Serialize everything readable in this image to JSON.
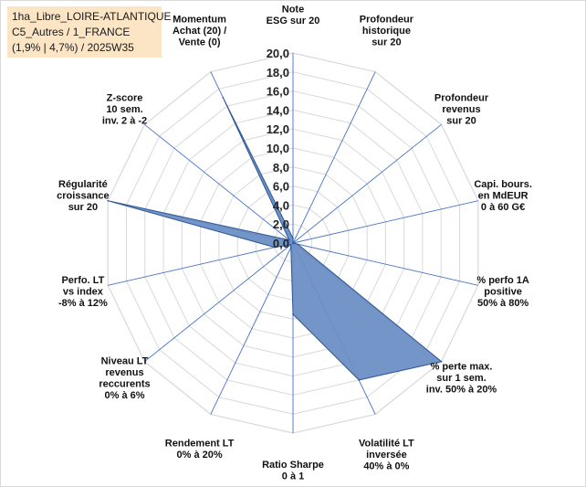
{
  "info": {
    "lines": [
      "1ha_Libre_LOIRE-ATLANTIQUE",
      "C5_Autres / 1_FRANCE",
      "(1,9% | 4,7%) / 2025W35"
    ]
  },
  "chart_data": {
    "type": "radar",
    "title": "",
    "rmax": 20,
    "ticks": [
      "0,0",
      "2,0",
      "4,0",
      "6,0",
      "8,0",
      "10,0",
      "12,0",
      "14,0",
      "16,0",
      "18,0",
      "20,0"
    ],
    "axes": [
      [
        "Note",
        "ESG sur 20"
      ],
      [
        "Profondeur",
        "historique",
        "sur 20"
      ],
      [
        "Profondeur",
        "revenus",
        "sur 20"
      ],
      [
        "Capi. bours.",
        "en MdEUR",
        "0 à 60 G€"
      ],
      [
        "% perfo 1A",
        "positive",
        "50% à 80%"
      ],
      [
        "% perte max.",
        "sur 1 sem.",
        "inv. 50% à 20%"
      ],
      [
        "Volatilité LT",
        "inversée",
        "40% à 0%"
      ],
      [
        "Ratio Sharpe",
        "0 à 1"
      ],
      [
        "Rendement LT",
        "0% à 20%"
      ],
      [
        "Niveau LT",
        "revenus",
        "reccurents",
        "0% à 6%"
      ],
      [
        "Perfo. LT",
        "vs index",
        "-8% à 12%"
      ],
      [
        "Régularité",
        "croissance",
        "sur 20"
      ],
      [
        "Z-score",
        "10 sem.",
        "inv. 2 à -2"
      ],
      [
        "Momentum",
        "Achat (20) /",
        "Vente (0)"
      ]
    ],
    "values": [
      0.5,
      0.0,
      0.0,
      0.0,
      0.5,
      20.0,
      16.0,
      7.5,
      0.5,
      0.3,
      2.0,
      20.0,
      0.5,
      17.0
    ],
    "colors": {
      "fill": "#6b8fc4",
      "stroke": "#2f5597",
      "grid": "#d9d9d9",
      "spoke": "#4472c4"
    }
  }
}
